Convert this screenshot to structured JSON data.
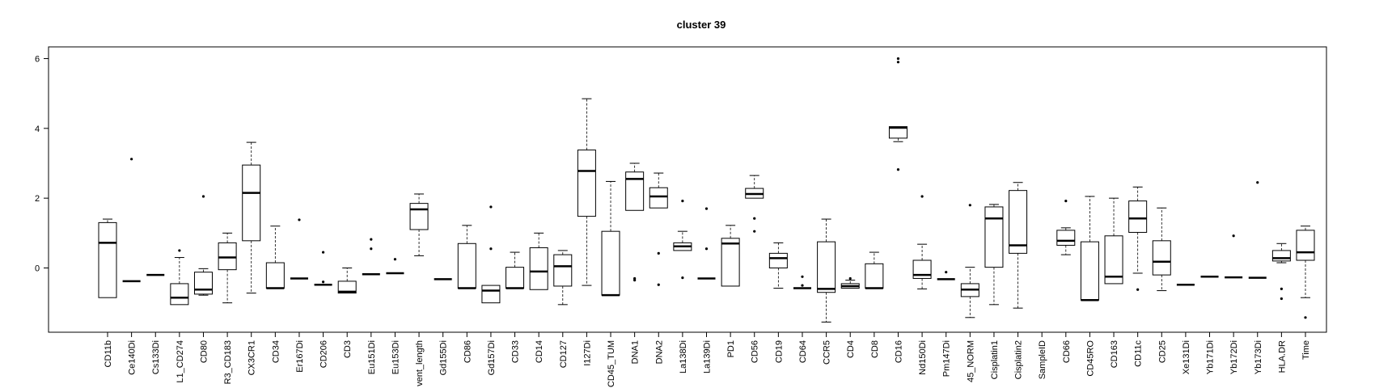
{
  "chart_data": {
    "type": "boxplot",
    "title": "cluster 39",
    "xlabel": "",
    "ylabel": "",
    "ylim": [
      -1.75,
      6.25
    ],
    "yticks": [
      0,
      2,
      4,
      6
    ],
    "grid": false,
    "categories": [
      "CD11b",
      "Ce140Di",
      "Cs133Di",
      "L1_CD274",
      "CD80",
      "R3_CD183",
      "CX3CR1",
      "CD34",
      "Er167Di",
      "CD206",
      "CD3",
      "Eu151Di",
      "Eu153Di",
      "vent_length",
      "Gd155Di",
      "CD86",
      "Gd157Di",
      "CD33",
      "CD14",
      "CD127",
      "I127Di",
      "CD45_TUM",
      "DNA1",
      "DNA2",
      "La138Di",
      "La139Di",
      "PD1",
      "CD56",
      "CD19",
      "CD64",
      "CCR5",
      "CD4",
      "CD8",
      "CD16",
      "Nd150Di",
      "Pm147Di",
      "45_NORM",
      "Cisplatin1",
      "Cisplatin2",
      "SampleID",
      "CD66",
      "CD45RO",
      "CD163",
      "CD11c",
      "CD25",
      "Xe131Di",
      "Yb171Di",
      "Yb172Di",
      "Yb173Di",
      "HLA.DR",
      "Time"
    ],
    "boxes": [
      {
        "wlo": -0.85,
        "q1": -0.85,
        "med": 0.72,
        "q3": 1.3,
        "whi": 1.4,
        "out": []
      },
      {
        "wlo": -0.38,
        "q1": -0.38,
        "med": -0.38,
        "q3": -0.38,
        "whi": -0.38,
        "out": [
          3.12
        ]
      },
      {
        "wlo": -0.2,
        "q1": -0.2,
        "med": -0.2,
        "q3": -0.2,
        "whi": -0.2,
        "out": []
      },
      {
        "wlo": -1.05,
        "q1": -1.05,
        "med": -0.85,
        "q3": -0.45,
        "whi": 0.3,
        "out": [
          0.5
        ]
      },
      {
        "wlo": -0.78,
        "q1": -0.75,
        "med": -0.62,
        "q3": -0.12,
        "whi": -0.02,
        "out": [
          2.05
        ]
      },
      {
        "wlo": -1.0,
        "q1": -0.05,
        "med": 0.3,
        "q3": 0.72,
        "whi": 1.0,
        "out": []
      },
      {
        "wlo": -0.72,
        "q1": 0.78,
        "med": 2.15,
        "q3": 2.95,
        "whi": 3.6,
        "out": []
      },
      {
        "wlo": -0.58,
        "q1": -0.58,
        "med": -0.58,
        "q3": 0.15,
        "whi": 1.2,
        "out": []
      },
      {
        "wlo": -0.3,
        "q1": -0.3,
        "med": -0.3,
        "q3": -0.3,
        "whi": -0.3,
        "out": [
          1.38
        ]
      },
      {
        "wlo": -0.48,
        "q1": -0.48,
        "med": -0.48,
        "q3": -0.48,
        "whi": -0.48,
        "out": [
          0.45,
          -0.4
        ]
      },
      {
        "wlo": -0.72,
        "q1": -0.72,
        "med": -0.68,
        "q3": -0.38,
        "whi": 0.0,
        "out": []
      },
      {
        "wlo": -0.18,
        "q1": -0.18,
        "med": -0.18,
        "q3": -0.18,
        "whi": -0.18,
        "out": [
          0.82,
          0.55
        ]
      },
      {
        "wlo": -0.15,
        "q1": -0.15,
        "med": -0.15,
        "q3": -0.15,
        "whi": -0.15,
        "out": [
          0.25
        ]
      },
      {
        "wlo": 0.35,
        "q1": 1.1,
        "med": 1.68,
        "q3": 1.85,
        "whi": 2.12,
        "out": []
      },
      {
        "wlo": -0.32,
        "q1": -0.32,
        "med": -0.32,
        "q3": -0.32,
        "whi": -0.32,
        "out": []
      },
      {
        "wlo": -0.58,
        "q1": -0.58,
        "med": -0.58,
        "q3": 0.7,
        "whi": 1.22,
        "out": []
      },
      {
        "wlo": -1.0,
        "q1": -1.0,
        "med": -0.65,
        "q3": -0.5,
        "whi": -0.5,
        "out": [
          1.75,
          0.55
        ]
      },
      {
        "wlo": -0.58,
        "q1": -0.58,
        "med": -0.58,
        "q3": 0.02,
        "whi": 0.45,
        "out": []
      },
      {
        "wlo": -0.62,
        "q1": -0.62,
        "med": -0.1,
        "q3": 0.58,
        "whi": 1.0,
        "out": []
      },
      {
        "wlo": -1.05,
        "q1": -0.52,
        "med": 0.05,
        "q3": 0.38,
        "whi": 0.5,
        "out": []
      },
      {
        "wlo": -0.5,
        "q1": 1.48,
        "med": 2.78,
        "q3": 3.38,
        "whi": 4.85,
        "out": []
      },
      {
        "wlo": -0.78,
        "q1": -0.78,
        "med": -0.78,
        "q3": 1.05,
        "whi": 2.48,
        "out": []
      },
      {
        "wlo": 1.65,
        "q1": 1.65,
        "med": 2.55,
        "q3": 2.75,
        "whi": 3.0,
        "out": [
          -0.3,
          -0.35
        ]
      },
      {
        "wlo": 1.72,
        "q1": 1.72,
        "med": 2.05,
        "q3": 2.3,
        "whi": 2.72,
        "out": [
          0.42,
          -0.48
        ]
      },
      {
        "wlo": 0.5,
        "q1": 0.5,
        "med": 0.62,
        "q3": 0.72,
        "whi": 1.05,
        "out": [
          1.92,
          -0.28
        ]
      },
      {
        "wlo": -0.3,
        "q1": -0.3,
        "med": -0.3,
        "q3": -0.3,
        "whi": -0.3,
        "out": [
          1.7,
          0.55
        ]
      },
      {
        "wlo": -0.52,
        "q1": -0.52,
        "med": 0.7,
        "q3": 0.85,
        "whi": 1.22,
        "out": []
      },
      {
        "wlo": 2.0,
        "q1": 2.0,
        "med": 2.12,
        "q3": 2.28,
        "whi": 2.65,
        "out": [
          1.42,
          1.05
        ]
      },
      {
        "wlo": -0.58,
        "q1": 0.0,
        "med": 0.28,
        "q3": 0.42,
        "whi": 0.72,
        "out": []
      },
      {
        "wlo": -0.58,
        "q1": -0.58,
        "med": -0.58,
        "q3": -0.58,
        "whi": -0.58,
        "out": [
          -0.25,
          -0.5
        ]
      },
      {
        "wlo": -1.55,
        "q1": -0.7,
        "med": -0.6,
        "q3": 0.75,
        "whi": 1.4,
        "out": []
      },
      {
        "wlo": -0.58,
        "q1": -0.58,
        "med": -0.52,
        "q3": -0.45,
        "whi": -0.35,
        "out": [
          -0.3
        ]
      },
      {
        "wlo": -0.58,
        "q1": -0.58,
        "med": -0.58,
        "q3": 0.12,
        "whi": 0.45,
        "out": []
      },
      {
        "wlo": 3.62,
        "q1": 3.72,
        "med": 4.02,
        "q3": 4.05,
        "whi": 4.05,
        "out": [
          6.0,
          5.9,
          2.82
        ]
      },
      {
        "wlo": -0.6,
        "q1": -0.3,
        "med": -0.2,
        "q3": 0.22,
        "whi": 0.68,
        "out": [
          2.05
        ]
      },
      {
        "wlo": -0.32,
        "q1": -0.32,
        "med": -0.32,
        "q3": -0.32,
        "whi": -0.32,
        "out": [
          -0.12
        ]
      },
      {
        "wlo": -1.42,
        "q1": -0.82,
        "med": -0.62,
        "q3": -0.45,
        "whi": 0.02,
        "out": [
          1.8
        ]
      },
      {
        "wlo": -1.05,
        "q1": 0.02,
        "med": 1.42,
        "q3": 1.75,
        "whi": 1.82,
        "out": []
      },
      {
        "wlo": -1.15,
        "q1": 0.42,
        "med": 0.65,
        "q3": 2.22,
        "whi": 2.45,
        "out": []
      },
      {
        "wlo": null,
        "q1": null,
        "med": null,
        "q3": null,
        "whi": null,
        "out": []
      },
      {
        "wlo": 0.38,
        "q1": 0.65,
        "med": 0.78,
        "q3": 1.08,
        "whi": 1.15,
        "out": [
          1.92
        ]
      },
      {
        "wlo": -0.92,
        "q1": -0.92,
        "med": -0.92,
        "q3": 0.75,
        "whi": 2.05,
        "out": []
      },
      {
        "wlo": -0.45,
        "q1": -0.45,
        "med": -0.25,
        "q3": 0.92,
        "whi": 2.0,
        "out": []
      },
      {
        "wlo": -0.15,
        "q1": 1.02,
        "med": 1.42,
        "q3": 1.92,
        "whi": 2.32,
        "out": [
          -0.62
        ]
      },
      {
        "wlo": -0.65,
        "q1": -0.2,
        "med": 0.18,
        "q3": 0.78,
        "whi": 1.72,
        "out": []
      },
      {
        "wlo": -0.48,
        "q1": -0.48,
        "med": -0.48,
        "q3": -0.48,
        "whi": -0.48,
        "out": []
      },
      {
        "wlo": -0.25,
        "q1": -0.25,
        "med": -0.25,
        "q3": -0.25,
        "whi": -0.25,
        "out": []
      },
      {
        "wlo": -0.27,
        "q1": -0.27,
        "med": -0.27,
        "q3": -0.27,
        "whi": -0.27,
        "out": [
          0.92
        ]
      },
      {
        "wlo": -0.28,
        "q1": -0.28,
        "med": -0.28,
        "q3": -0.28,
        "whi": -0.28,
        "out": [
          2.45
        ]
      },
      {
        "wlo": 0.15,
        "q1": 0.2,
        "med": 0.28,
        "q3": 0.5,
        "whi": 0.7,
        "out": [
          -0.6,
          -0.88
        ]
      },
      {
        "wlo": -0.85,
        "q1": 0.22,
        "med": 0.45,
        "q3": 1.08,
        "whi": 1.2,
        "out": [
          -1.42
        ]
      }
    ]
  }
}
